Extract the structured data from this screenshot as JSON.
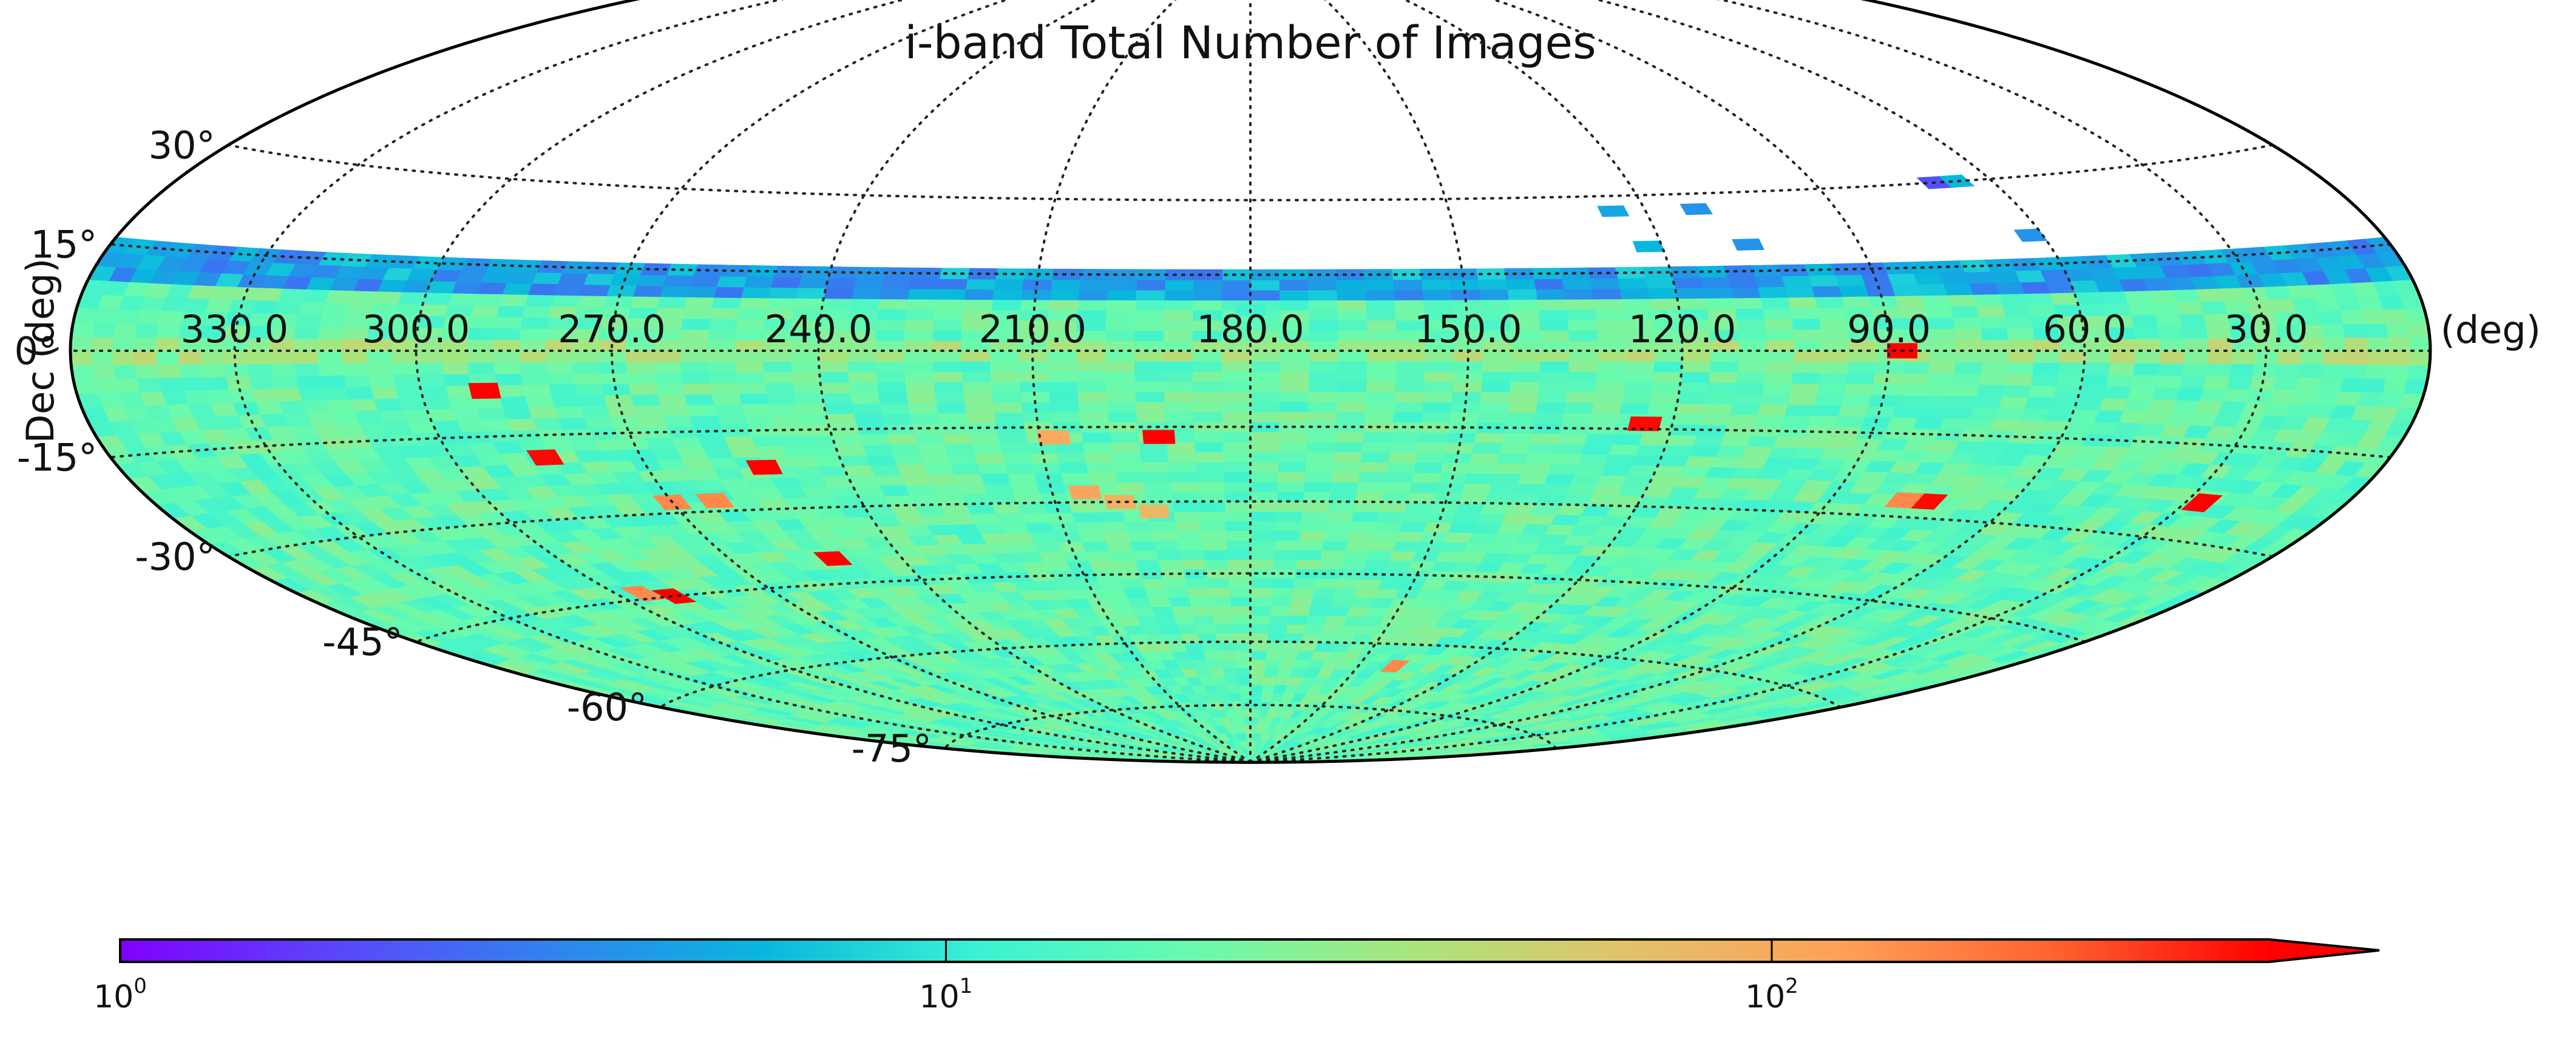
{
  "chart_data": {
    "type": "heatmap",
    "projection": "Hammer-Aitoff (all-sky)",
    "title": "i-band Total Number of Images",
    "xlabel": "RA (deg)",
    "ylabel": "Dec (deg)",
    "ra_tick_labels": [
      "330.0",
      "300.0",
      "270.0",
      "240.0",
      "210.0",
      "180.0",
      "150.0",
      "120.0",
      "90.0",
      "60.0",
      "30.0"
    ],
    "ra_ticks": [
      330,
      300,
      270,
      240,
      210,
      180,
      150,
      120,
      90,
      60,
      30
    ],
    "dec_tick_labels": [
      "30°",
      "15°",
      "0°",
      "-15°",
      "-30°",
      "-45°",
      "-60°",
      "-75°"
    ],
    "dec_ticks": [
      30,
      15,
      0,
      -15,
      -30,
      -45,
      -60,
      -75
    ],
    "ra_orientation": "RA increases to the left (East left)",
    "coverage": {
      "dec_range": [
        -90,
        16
      ],
      "ra_range": [
        0,
        360
      ],
      "typical_value": 18,
      "high_row_dec_range": [
        -2,
        1
      ],
      "sparse_low_coverage_band_dec": [
        10,
        16
      ],
      "scattered_patches_above": [
        {
          "ra": 125,
          "dec": 27,
          "value": 5
        },
        {
          "ra": 112,
          "dec": 27,
          "value": 4
        },
        {
          "ra": 70,
          "dec": 30,
          "value": 2
        },
        {
          "ra": 66,
          "dec": 30,
          "value": 6
        },
        {
          "ra": 122,
          "dec": 20,
          "value": 6
        },
        {
          "ra": 107,
          "dec": 20,
          "value": 4
        },
        {
          "ra": 62,
          "dec": 20,
          "value": 4
        },
        {
          "ra": 180,
          "dec": 8,
          "value": 12
        }
      ]
    },
    "hotspots": [
      {
        "ra": 88,
        "dec": 0,
        "value": 400
      },
      {
        "ra": 290,
        "dec": -7,
        "value": 400
      },
      {
        "ra": 124,
        "dec": -14,
        "value": 380
      },
      {
        "ra": 193,
        "dec": -17,
        "value": 400
      },
      {
        "ra": 285,
        "dec": -19,
        "value": 380
      },
      {
        "ra": 252,
        "dec": -22,
        "value": 400
      },
      {
        "ra": 27,
        "dec": -24,
        "value": 400
      },
      {
        "ra": 74,
        "dec": -27,
        "value": 380
      },
      {
        "ra": 78,
        "dec": -27,
        "value": 150
      },
      {
        "ra": 270,
        "dec": -28,
        "value": 150
      },
      {
        "ra": 263,
        "dec": -28,
        "value": 150
      },
      {
        "ra": 252,
        "dec": -40,
        "value": 400
      },
      {
        "ra": 290,
        "dec": -45,
        "value": 400
      },
      {
        "ra": 295,
        "dec": -44,
        "value": 150
      },
      {
        "ra": 140,
        "dec": -65,
        "value": 150
      },
      {
        "ra": 200,
        "dec": -30,
        "value": 90
      },
      {
        "ra": 195,
        "dec": -32,
        "value": 80
      },
      {
        "ra": 205,
        "dec": -28,
        "value": 110
      },
      {
        "ra": 208,
        "dec": -17,
        "value": 100
      }
    ],
    "colorbar": {
      "scale": "log",
      "range": [
        1,
        400
      ],
      "colormap": "rainbow",
      "extend": "max",
      "tick_values": [
        1,
        10,
        100
      ],
      "tick_labels": [
        {
          "base": "10",
          "exp": "0"
        },
        {
          "base": "10",
          "exp": "1"
        },
        {
          "base": "10",
          "exp": "2"
        }
      ]
    },
    "grid": true,
    "colors": {
      "low": "#7f00ff",
      "mid": "#3cf2d3",
      "green": "#a9e57d",
      "high": "#ff0000",
      "boundary": "#000000"
    }
  }
}
